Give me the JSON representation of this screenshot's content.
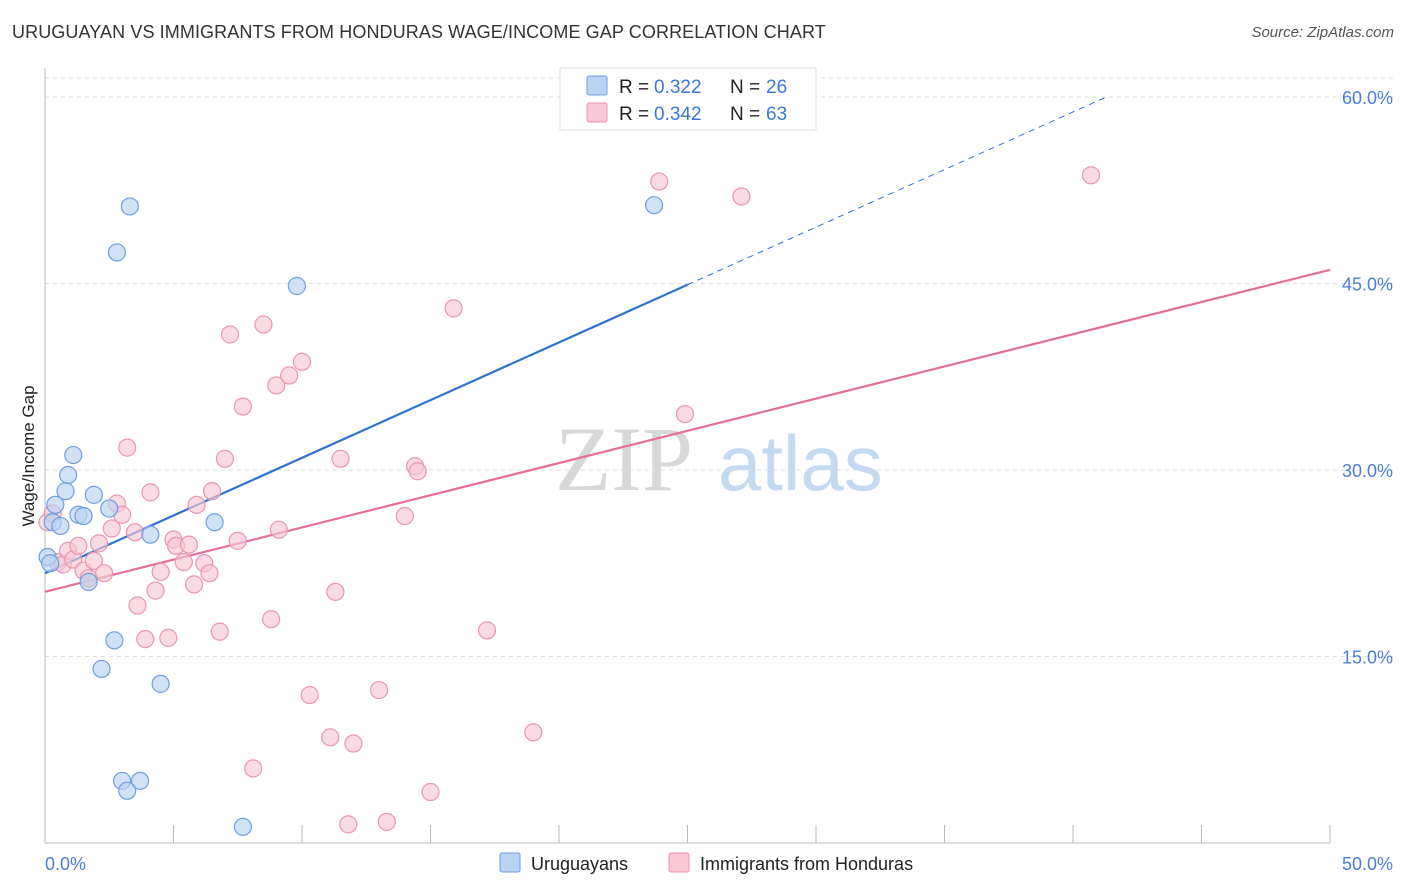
{
  "header": {
    "title": "URUGUAYAN VS IMMIGRANTS FROM HONDURAS WAGE/INCOME GAP CORRELATION CHART",
    "source": "Source: ZipAtlas.com"
  },
  "watermark": {
    "zip": "ZIP",
    "atlas": "atlas"
  },
  "colors": {
    "uruguayans_fill": "#b9d3f3",
    "uruguayans_stroke": "#6f9ee0",
    "uruguayans_line": "#2f72d0",
    "honduras_fill": "#f8c8d6",
    "honduras_stroke": "#ea95b0",
    "honduras_line": "#e07096",
    "grid": "#dddddd",
    "tick_text": "#4a7fd4"
  },
  "legend": {
    "rows": [
      {
        "r_label": "R = ",
        "r_value": "0.322",
        "n_label": "N = ",
        "n_value": "26"
      },
      {
        "r_label": "R = ",
        "r_value": "0.342",
        "n_label": "N = ",
        "n_value": "63"
      }
    ]
  },
  "bottom_legend": {
    "uruguayans": "Uruguayans",
    "honduras": "Immigrants from Honduras"
  },
  "chart_data": {
    "type": "scatter",
    "title": "URUGUAYAN VS IMMIGRANTS FROM HONDURAS WAGE/INCOME GAP CORRELATION CHART",
    "xlabel": "",
    "ylabel": "Wage/Income Gap",
    "xlim": [
      0,
      50
    ],
    "ylim": [
      0,
      60
    ],
    "x_tick_labels": [
      "0.0%",
      "50.0%"
    ],
    "y_ticks": [
      15,
      30,
      45,
      60
    ],
    "y_tick_labels": [
      "15.0%",
      "30.0%",
      "45.0%",
      "60.0%"
    ],
    "grid": true,
    "series": [
      {
        "name": "Uruguayans",
        "R": 0.322,
        "N": 26,
        "points": [
          [
            0.1,
            23.0
          ],
          [
            0.3,
            25.8
          ],
          [
            0.4,
            27.2
          ],
          [
            0.6,
            25.5
          ],
          [
            0.8,
            28.3
          ],
          [
            0.9,
            29.6
          ],
          [
            1.1,
            31.2
          ],
          [
            1.3,
            26.4
          ],
          [
            1.5,
            26.3
          ],
          [
            1.7,
            21.0
          ],
          [
            1.9,
            28.0
          ],
          [
            2.2,
            14.0
          ],
          [
            2.5,
            26.9
          ],
          [
            2.7,
            16.3
          ],
          [
            2.8,
            47.5
          ],
          [
            3.0,
            5.0
          ],
          [
            3.3,
            51.2
          ],
          [
            3.7,
            5.0
          ],
          [
            3.2,
            4.2
          ],
          [
            4.1,
            24.8
          ],
          [
            4.5,
            12.8
          ],
          [
            6.6,
            25.8
          ],
          [
            7.7,
            1.3
          ],
          [
            9.8,
            44.8
          ],
          [
            23.7,
            51.3
          ],
          [
            0.2,
            22.5
          ]
        ],
        "trend": {
          "x0": 0,
          "y0": 21.7,
          "x1": 25,
          "y1": 44.9,
          "dashed_to_x": 41.3,
          "dashed_to_y": 60.0
        }
      },
      {
        "name": "Immigrants from Honduras",
        "R": 0.342,
        "N": 63,
        "points": [
          [
            0.1,
            25.8
          ],
          [
            0.3,
            26.5
          ],
          [
            0.5,
            22.6
          ],
          [
            0.7,
            22.4
          ],
          [
            0.9,
            23.5
          ],
          [
            1.1,
            22.8
          ],
          [
            1.3,
            23.9
          ],
          [
            1.5,
            21.9
          ],
          [
            1.7,
            21.3
          ],
          [
            1.9,
            22.7
          ],
          [
            2.1,
            24.1
          ],
          [
            2.3,
            21.7
          ],
          [
            2.6,
            25.3
          ],
          [
            2.8,
            27.3
          ],
          [
            3.0,
            26.4
          ],
          [
            3.2,
            31.8
          ],
          [
            3.5,
            25.0
          ],
          [
            3.6,
            19.1
          ],
          [
            3.9,
            16.4
          ],
          [
            4.1,
            28.2
          ],
          [
            4.3,
            20.3
          ],
          [
            4.5,
            21.8
          ],
          [
            4.8,
            16.5
          ],
          [
            5.0,
            24.4
          ],
          [
            5.1,
            23.9
          ],
          [
            5.4,
            22.6
          ],
          [
            5.6,
            24.0
          ],
          [
            5.8,
            20.8
          ],
          [
            5.9,
            27.2
          ],
          [
            6.2,
            22.5
          ],
          [
            6.4,
            21.7
          ],
          [
            6.5,
            28.3
          ],
          [
            6.8,
            17.0
          ],
          [
            7.0,
            30.9
          ],
          [
            7.2,
            40.9
          ],
          [
            7.5,
            24.3
          ],
          [
            7.7,
            35.1
          ],
          [
            8.1,
            6.0
          ],
          [
            8.5,
            41.7
          ],
          [
            8.8,
            18.0
          ],
          [
            9.0,
            36.8
          ],
          [
            9.1,
            25.2
          ],
          [
            9.5,
            37.6
          ],
          [
            10.0,
            38.7
          ],
          [
            10.3,
            11.9
          ],
          [
            11.1,
            8.5
          ],
          [
            11.3,
            20.2
          ],
          [
            11.5,
            30.9
          ],
          [
            11.8,
            1.5
          ],
          [
            12.0,
            8.0
          ],
          [
            13.0,
            12.3
          ],
          [
            13.3,
            1.7
          ],
          [
            14.0,
            26.3
          ],
          [
            14.4,
            30.3
          ],
          [
            14.5,
            29.9
          ],
          [
            15.0,
            4.1
          ],
          [
            15.9,
            43.0
          ],
          [
            17.2,
            17.1
          ],
          [
            19.0,
            8.9
          ],
          [
            23.9,
            53.2
          ],
          [
            24.9,
            34.5
          ],
          [
            27.1,
            52.0
          ],
          [
            40.7,
            53.7
          ]
        ],
        "trend": {
          "x0": 0,
          "y0": 20.2,
          "x1": 50,
          "y1": 46.1
        }
      }
    ]
  }
}
